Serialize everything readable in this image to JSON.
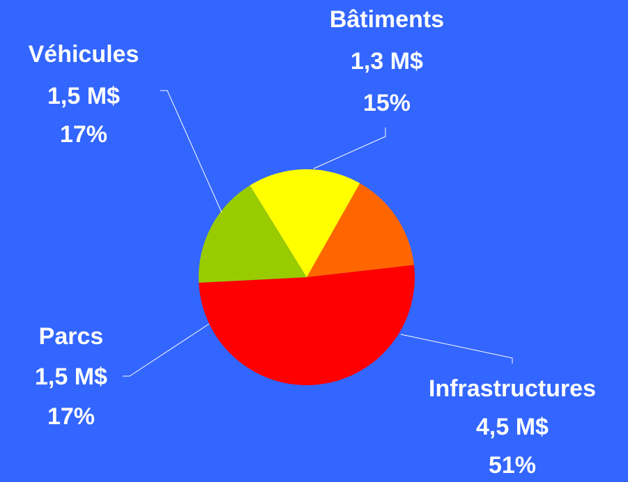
{
  "chart_data": {
    "type": "pie",
    "categories": [
      "Bâtiments",
      "Infrastructures",
      "Parcs",
      "Véhicules"
    ],
    "values": [
      15,
      51,
      17,
      17
    ],
    "value_labels": [
      "15%",
      "51%",
      "17%",
      "17%"
    ],
    "amount_labels": [
      "1,3 M$",
      "4,5 M$",
      "1,5 M$",
      "1,5 M$"
    ],
    "colors": [
      "#ff6600",
      "#ff0000",
      "#99cc00",
      "#ffff00"
    ],
    "background": "#3366ff"
  }
}
